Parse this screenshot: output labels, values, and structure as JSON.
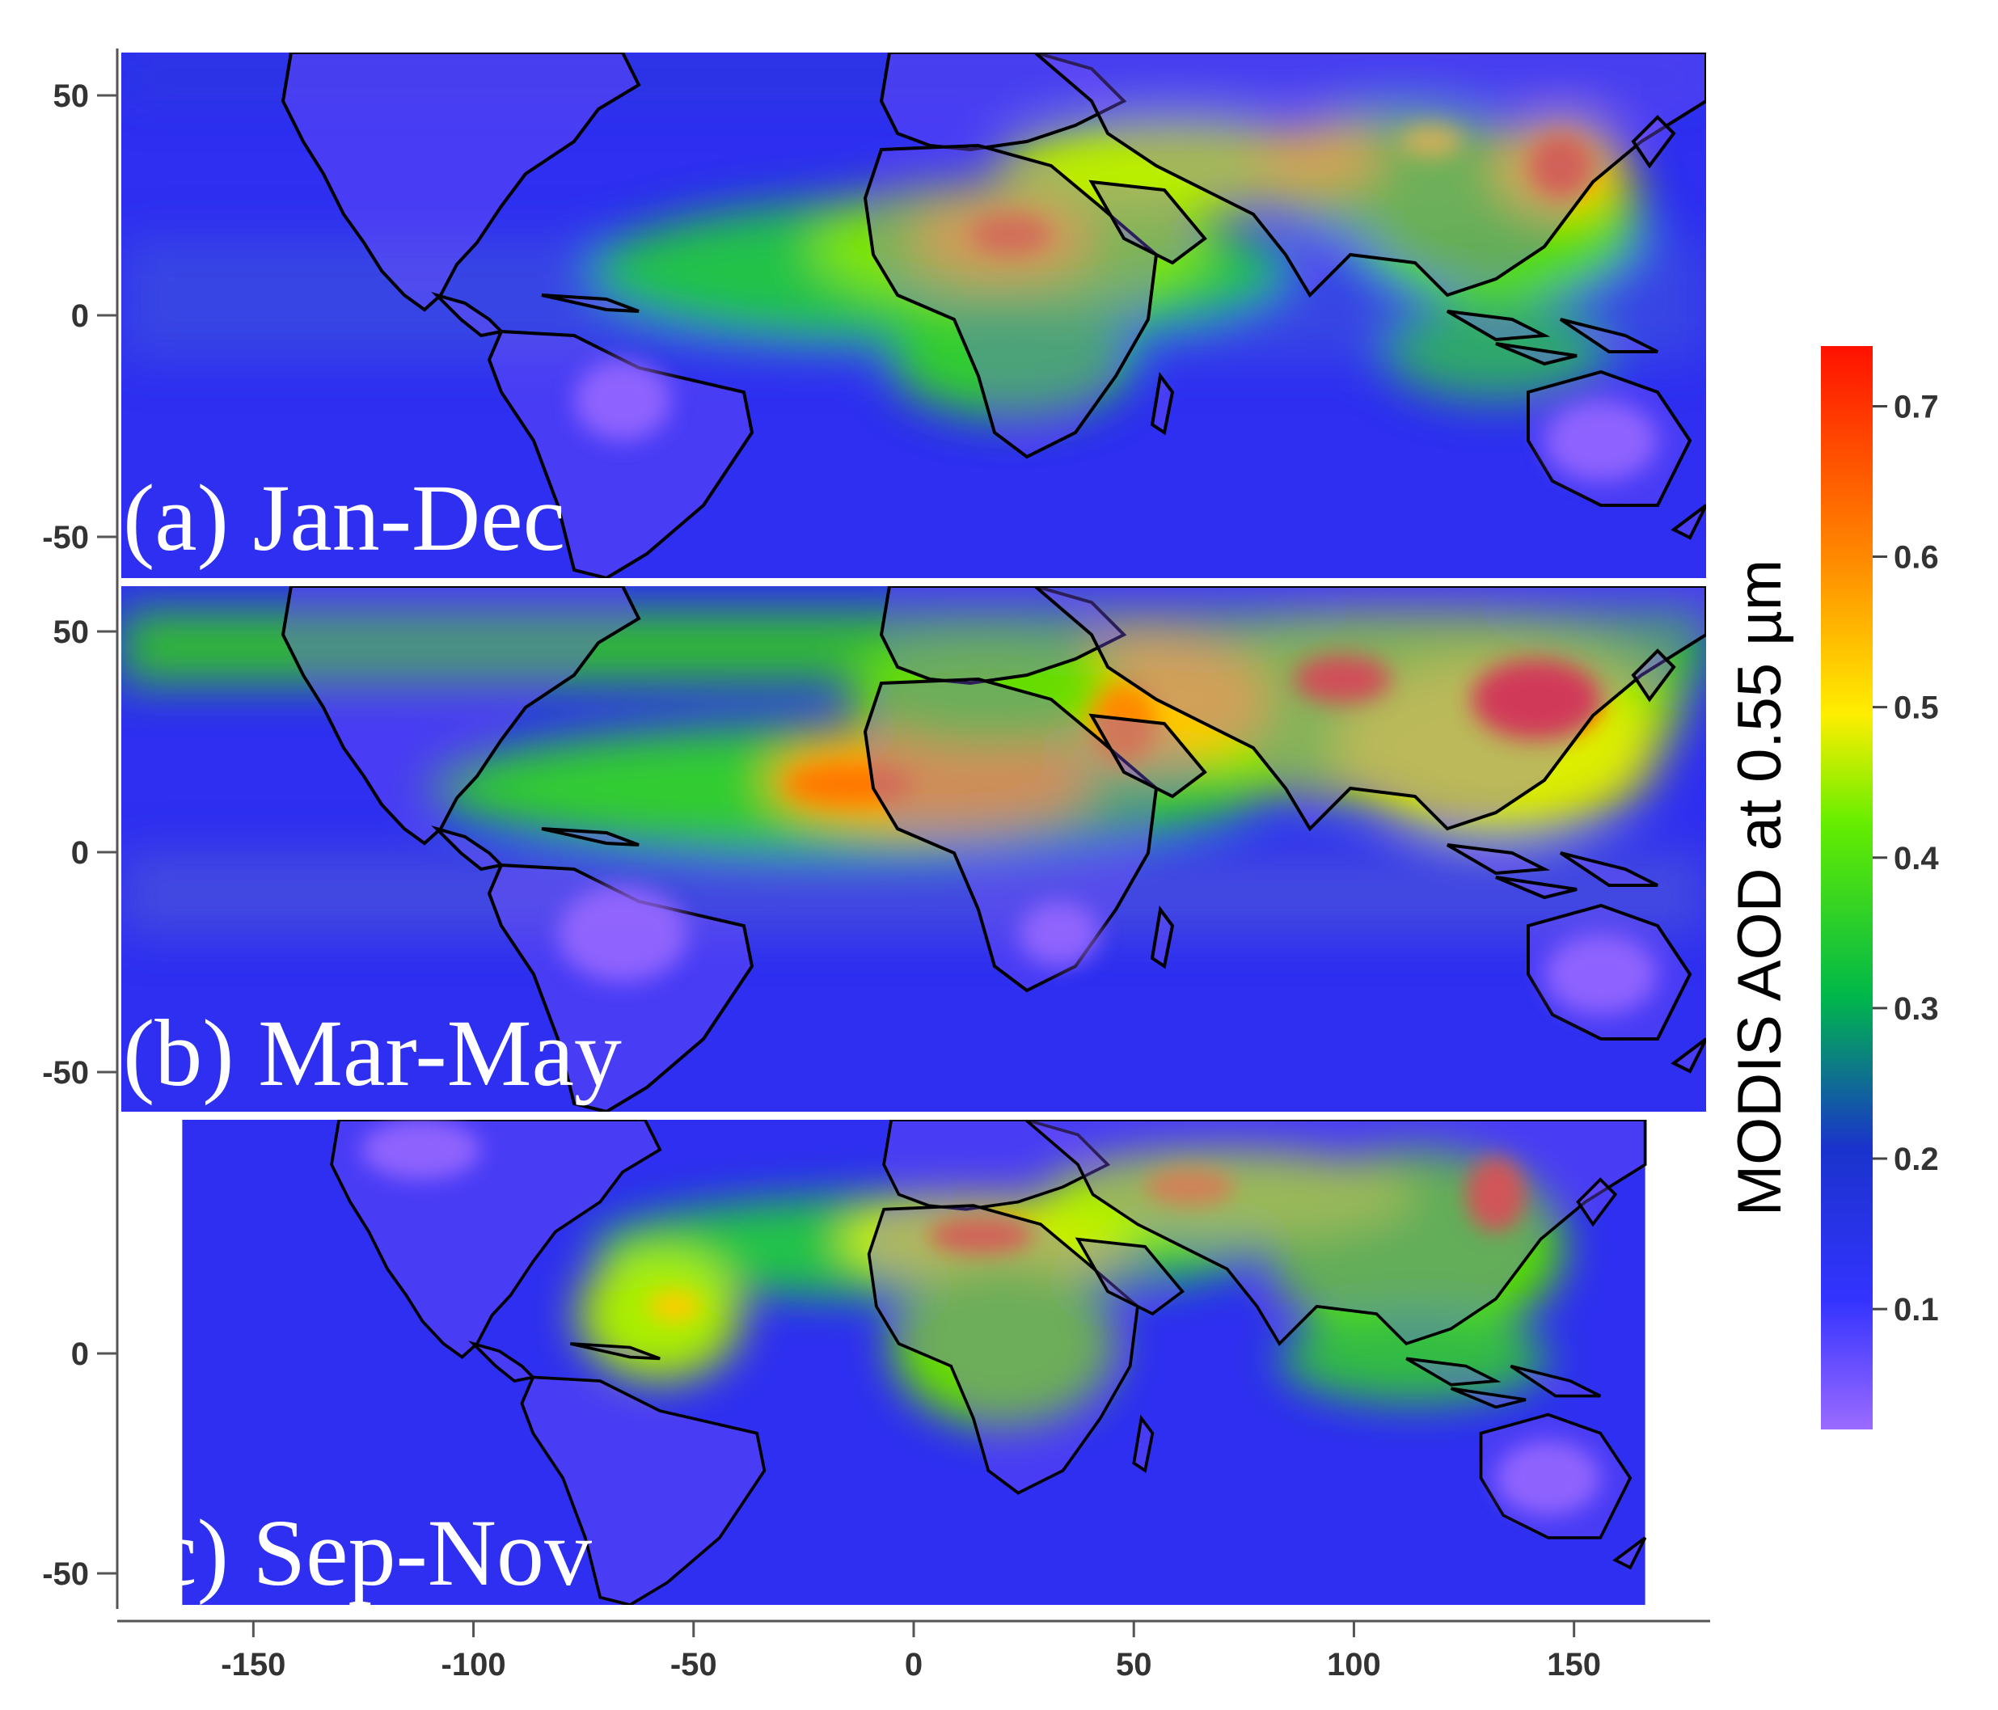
{
  "figure": {
    "panels": [
      {
        "label": "(a) Jan-Dec"
      },
      {
        "label": "(b) Mar-May"
      },
      {
        "label": "(c) Sep-Nov"
      }
    ],
    "y_ticks": [
      "50",
      "0",
      "-50"
    ],
    "x_ticks": [
      "-150",
      "-100",
      "-50",
      "0",
      "50",
      "100",
      "150"
    ],
    "x_tick_values": [
      -150,
      -100,
      -50,
      0,
      50,
      100,
      150
    ],
    "y_tick_values": [
      50,
      0,
      -50
    ],
    "lon_range": [
      -180,
      180
    ],
    "lat_range": [
      -60,
      60
    ],
    "colorbar": {
      "title": "MODIS AOD at 0.55 µm",
      "ticks": [
        "0.1",
        "0.2",
        "0.3",
        "0.4",
        "0.5",
        "0.6",
        "0.7"
      ],
      "tick_values": [
        0.1,
        0.2,
        0.3,
        0.4,
        0.5,
        0.6,
        0.7
      ],
      "range": [
        0.02,
        0.74
      ],
      "colors": [
        "#9b6bff",
        "#2222ee",
        "#00cc33",
        "#ffee00",
        "#ff8800",
        "#ff1100"
      ]
    }
  }
}
